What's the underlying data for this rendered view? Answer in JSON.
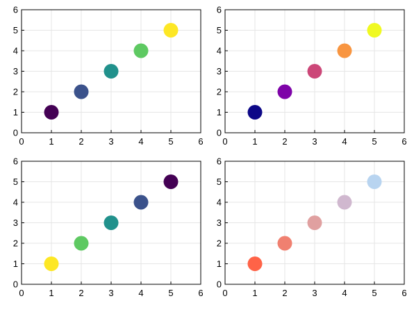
{
  "chart_data": [
    {
      "type": "scatter",
      "title": "",
      "xlabel": "",
      "ylabel": "",
      "xlim": [
        0,
        6
      ],
      "ylim": [
        0,
        6
      ],
      "xticks": [
        "0",
        "1",
        "2",
        "3",
        "4",
        "5",
        "6"
      ],
      "yticks": [
        "0",
        "1",
        "2",
        "3",
        "4",
        "5",
        "6"
      ],
      "grid": true,
      "series": [
        {
          "x": [
            1,
            2,
            3,
            4,
            5
          ],
          "y": [
            1,
            2,
            3,
            4,
            5
          ],
          "colors": [
            "#440154",
            "#3b528b",
            "#21918c",
            "#5ec962",
            "#fde725"
          ]
        }
      ]
    },
    {
      "type": "scatter",
      "title": "",
      "xlabel": "",
      "ylabel": "",
      "xlim": [
        0,
        6
      ],
      "ylim": [
        0,
        6
      ],
      "xticks": [
        "0",
        "1",
        "2",
        "3",
        "4",
        "5",
        "6"
      ],
      "yticks": [
        "0",
        "1",
        "2",
        "3",
        "4",
        "5",
        "6"
      ],
      "grid": true,
      "series": [
        {
          "x": [
            1,
            2,
            3,
            4,
            5
          ],
          "y": [
            1,
            2,
            3,
            4,
            5
          ],
          "colors": [
            "#0d0887",
            "#7e03a8",
            "#cc4778",
            "#f89540",
            "#f0f921"
          ]
        }
      ]
    },
    {
      "type": "scatter",
      "title": "",
      "xlabel": "",
      "ylabel": "",
      "xlim": [
        0,
        6
      ],
      "ylim": [
        0,
        6
      ],
      "xticks": [
        "0",
        "1",
        "2",
        "3",
        "4",
        "5",
        "6"
      ],
      "yticks": [
        "0",
        "1",
        "2",
        "3",
        "4",
        "5",
        "6"
      ],
      "grid": true,
      "series": [
        {
          "x": [
            1,
            2,
            3,
            4,
            5
          ],
          "y": [
            1,
            2,
            3,
            4,
            5
          ],
          "colors": [
            "#fde725",
            "#5ec962",
            "#21918c",
            "#3b528b",
            "#440154"
          ]
        }
      ]
    },
    {
      "type": "scatter",
      "title": "",
      "xlabel": "",
      "ylabel": "",
      "xlim": [
        0,
        6
      ],
      "ylim": [
        0,
        6
      ],
      "xticks": [
        "0",
        "1",
        "2",
        "3",
        "4",
        "5",
        "6"
      ],
      "yticks": [
        "0",
        "1",
        "2",
        "3",
        "4",
        "5",
        "6"
      ],
      "grid": true,
      "series": [
        {
          "x": [
            1,
            2,
            3,
            4,
            5
          ],
          "y": [
            1,
            2,
            3,
            4,
            5
          ],
          "colors": [
            "#ff6347",
            "#f08070",
            "#e0a0a0",
            "#d0b8cf",
            "#b8d4f0"
          ]
        }
      ]
    }
  ]
}
